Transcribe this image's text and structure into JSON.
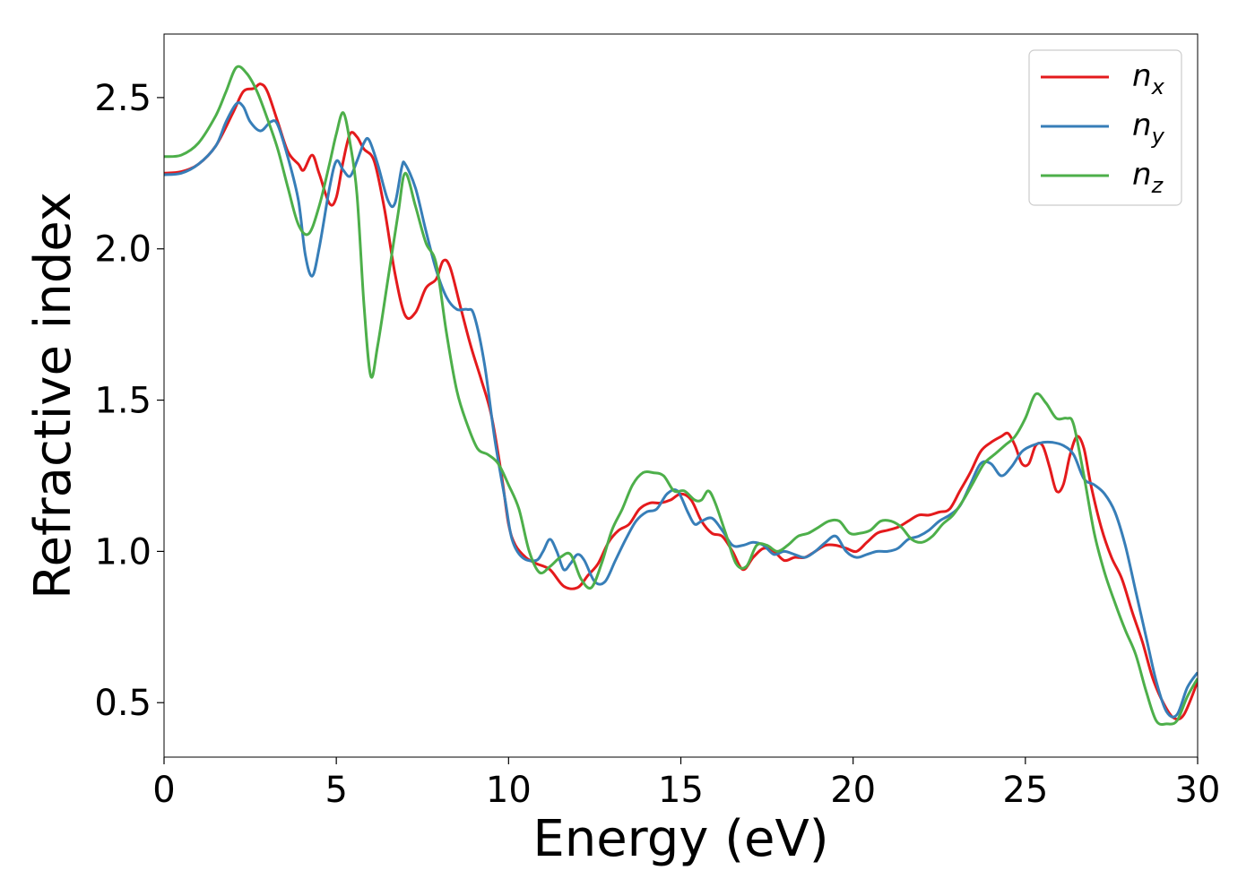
{
  "chart_data": {
    "type": "line",
    "title": "",
    "xlabel": "Energy (eV)",
    "ylabel": "Refractive index",
    "xlim": [
      0,
      30
    ],
    "ylim": [
      0.32,
      2.71
    ],
    "xticks": [
      0,
      5,
      10,
      15,
      20,
      25,
      30
    ],
    "yticks": [
      0.5,
      1.0,
      1.5,
      2.0,
      2.5
    ],
    "xtick_labels": [
      "0",
      "5",
      "10",
      "15",
      "20",
      "25",
      "30"
    ],
    "ytick_labels": [
      "0.5",
      "1.0",
      "1.5",
      "2.0",
      "2.5"
    ],
    "grid": false,
    "legend_position": "top-right",
    "series": [
      {
        "name": "n_x",
        "legend_base": "n",
        "legend_sub": "x",
        "color": "#e41a1c",
        "points": [
          [
            0,
            2.25
          ],
          [
            0.5,
            2.255
          ],
          [
            1.0,
            2.28
          ],
          [
            1.5,
            2.34
          ],
          [
            2.0,
            2.45
          ],
          [
            2.3,
            2.52
          ],
          [
            2.6,
            2.53
          ],
          [
            2.8,
            2.545
          ],
          [
            3.0,
            2.52
          ],
          [
            3.3,
            2.42
          ],
          [
            3.6,
            2.32
          ],
          [
            3.9,
            2.28
          ],
          [
            4.05,
            2.26
          ],
          [
            4.3,
            2.31
          ],
          [
            4.5,
            2.25
          ],
          [
            4.8,
            2.15
          ],
          [
            5.0,
            2.17
          ],
          [
            5.2,
            2.29
          ],
          [
            5.4,
            2.38
          ],
          [
            5.6,
            2.37
          ],
          [
            5.8,
            2.33
          ],
          [
            6.1,
            2.29
          ],
          [
            6.4,
            2.13
          ],
          [
            6.7,
            1.92
          ],
          [
            7.0,
            1.78
          ],
          [
            7.3,
            1.79
          ],
          [
            7.6,
            1.87
          ],
          [
            7.9,
            1.9
          ],
          [
            8.1,
            1.96
          ],
          [
            8.3,
            1.94
          ],
          [
            8.6,
            1.81
          ],
          [
            8.9,
            1.68
          ],
          [
            9.2,
            1.57
          ],
          [
            9.5,
            1.45
          ],
          [
            9.8,
            1.25
          ],
          [
            10.0,
            1.09
          ],
          [
            10.2,
            1.02
          ],
          [
            10.5,
            0.98
          ],
          [
            10.8,
            0.96
          ],
          [
            11.2,
            0.94
          ],
          [
            11.6,
            0.885
          ],
          [
            12.0,
            0.88
          ],
          [
            12.3,
            0.92
          ],
          [
            12.6,
            0.96
          ],
          [
            12.9,
            1.03
          ],
          [
            13.2,
            1.07
          ],
          [
            13.5,
            1.09
          ],
          [
            13.8,
            1.14
          ],
          [
            14.1,
            1.16
          ],
          [
            14.4,
            1.16
          ],
          [
            14.7,
            1.17
          ],
          [
            15.0,
            1.19
          ],
          [
            15.3,
            1.17
          ],
          [
            15.6,
            1.1
          ],
          [
            15.9,
            1.06
          ],
          [
            16.2,
            1.05
          ],
          [
            16.5,
            1.0
          ],
          [
            16.8,
            0.94
          ],
          [
            17.1,
            0.98
          ],
          [
            17.4,
            1.01
          ],
          [
            17.7,
            1.0
          ],
          [
            18.0,
            0.97
          ],
          [
            18.3,
            0.98
          ],
          [
            18.6,
            0.98
          ],
          [
            18.9,
            1.0
          ],
          [
            19.2,
            1.02
          ],
          [
            19.5,
            1.02
          ],
          [
            19.8,
            1.01
          ],
          [
            20.1,
            1.0
          ],
          [
            20.4,
            1.03
          ],
          [
            20.7,
            1.06
          ],
          [
            21.0,
            1.07
          ],
          [
            21.3,
            1.08
          ],
          [
            21.6,
            1.1
          ],
          [
            21.9,
            1.12
          ],
          [
            22.2,
            1.12
          ],
          [
            22.5,
            1.13
          ],
          [
            22.8,
            1.14
          ],
          [
            23.1,
            1.2
          ],
          [
            23.4,
            1.26
          ],
          [
            23.7,
            1.33
          ],
          [
            24.0,
            1.36
          ],
          [
            24.3,
            1.38
          ],
          [
            24.5,
            1.39
          ],
          [
            24.7,
            1.35
          ],
          [
            24.9,
            1.29
          ],
          [
            25.1,
            1.29
          ],
          [
            25.3,
            1.35
          ],
          [
            25.5,
            1.35
          ],
          [
            25.7,
            1.28
          ],
          [
            25.9,
            1.2
          ],
          [
            26.1,
            1.22
          ],
          [
            26.3,
            1.32
          ],
          [
            26.5,
            1.38
          ],
          [
            26.7,
            1.34
          ],
          [
            26.9,
            1.22
          ],
          [
            27.2,
            1.08
          ],
          [
            27.5,
            0.98
          ],
          [
            27.8,
            0.91
          ],
          [
            28.1,
            0.8
          ],
          [
            28.4,
            0.7
          ],
          [
            28.7,
            0.58
          ],
          [
            29.0,
            0.5
          ],
          [
            29.3,
            0.45
          ],
          [
            29.6,
            0.46
          ],
          [
            30.0,
            0.57
          ]
        ]
      },
      {
        "name": "n_y",
        "legend_base": "n",
        "legend_sub": "y",
        "color": "#377eb8",
        "points": [
          [
            0,
            2.245
          ],
          [
            0.5,
            2.25
          ],
          [
            1.0,
            2.28
          ],
          [
            1.5,
            2.34
          ],
          [
            1.8,
            2.42
          ],
          [
            2.1,
            2.48
          ],
          [
            2.3,
            2.47
          ],
          [
            2.5,
            2.42
          ],
          [
            2.8,
            2.39
          ],
          [
            3.1,
            2.42
          ],
          [
            3.3,
            2.41
          ],
          [
            3.6,
            2.3
          ],
          [
            3.9,
            2.16
          ],
          [
            4.1,
            1.98
          ],
          [
            4.3,
            1.91
          ],
          [
            4.5,
            2.0
          ],
          [
            4.8,
            2.2
          ],
          [
            5.0,
            2.29
          ],
          [
            5.2,
            2.26
          ],
          [
            5.4,
            2.24
          ],
          [
            5.6,
            2.29
          ],
          [
            5.8,
            2.35
          ],
          [
            5.95,
            2.36
          ],
          [
            6.2,
            2.28
          ],
          [
            6.5,
            2.16
          ],
          [
            6.7,
            2.15
          ],
          [
            6.9,
            2.27
          ],
          [
            7.0,
            2.28
          ],
          [
            7.3,
            2.2
          ],
          [
            7.6,
            2.06
          ],
          [
            7.9,
            1.93
          ],
          [
            8.2,
            1.84
          ],
          [
            8.5,
            1.8
          ],
          [
            8.8,
            1.8
          ],
          [
            9.0,
            1.78
          ],
          [
            9.3,
            1.62
          ],
          [
            9.6,
            1.37
          ],
          [
            9.9,
            1.17
          ],
          [
            10.1,
            1.04
          ],
          [
            10.4,
            0.98
          ],
          [
            10.8,
            0.97
          ],
          [
            11.0,
            1.0
          ],
          [
            11.2,
            1.04
          ],
          [
            11.4,
            1.0
          ],
          [
            11.6,
            0.94
          ],
          [
            11.8,
            0.96
          ],
          [
            12.0,
            0.99
          ],
          [
            12.2,
            0.97
          ],
          [
            12.5,
            0.9
          ],
          [
            12.8,
            0.9
          ],
          [
            13.1,
            0.97
          ],
          [
            13.4,
            1.04
          ],
          [
            13.7,
            1.1
          ],
          [
            14.0,
            1.13
          ],
          [
            14.3,
            1.14
          ],
          [
            14.6,
            1.19
          ],
          [
            14.9,
            1.2
          ],
          [
            15.2,
            1.13
          ],
          [
            15.4,
            1.09
          ],
          [
            15.6,
            1.1
          ],
          [
            15.9,
            1.11
          ],
          [
            16.2,
            1.07
          ],
          [
            16.5,
            1.02
          ],
          [
            16.8,
            1.02
          ],
          [
            17.1,
            1.03
          ],
          [
            17.4,
            1.02
          ],
          [
            17.7,
            0.99
          ],
          [
            18.0,
            1.0
          ],
          [
            18.3,
            0.99
          ],
          [
            18.6,
            0.98
          ],
          [
            18.9,
            1.0
          ],
          [
            19.2,
            1.03
          ],
          [
            19.5,
            1.05
          ],
          [
            19.8,
            1.0
          ],
          [
            20.1,
            0.98
          ],
          [
            20.4,
            0.99
          ],
          [
            20.7,
            1.0
          ],
          [
            21.0,
            1.0
          ],
          [
            21.3,
            1.01
          ],
          [
            21.6,
            1.04
          ],
          [
            21.9,
            1.05
          ],
          [
            22.2,
            1.07
          ],
          [
            22.5,
            1.1
          ],
          [
            22.8,
            1.12
          ],
          [
            23.1,
            1.15
          ],
          [
            23.4,
            1.22
          ],
          [
            23.7,
            1.29
          ],
          [
            24.0,
            1.29
          ],
          [
            24.3,
            1.25
          ],
          [
            24.6,
            1.28
          ],
          [
            24.9,
            1.33
          ],
          [
            25.2,
            1.35
          ],
          [
            25.5,
            1.36
          ],
          [
            25.8,
            1.36
          ],
          [
            26.1,
            1.35
          ],
          [
            26.4,
            1.32
          ],
          [
            26.7,
            1.24
          ],
          [
            27.0,
            1.22
          ],
          [
            27.3,
            1.19
          ],
          [
            27.6,
            1.13
          ],
          [
            27.9,
            1.02
          ],
          [
            28.2,
            0.87
          ],
          [
            28.5,
            0.72
          ],
          [
            28.8,
            0.57
          ],
          [
            29.1,
            0.47
          ],
          [
            29.4,
            0.46
          ],
          [
            29.7,
            0.55
          ],
          [
            30.0,
            0.6
          ]
        ]
      },
      {
        "name": "n_z",
        "legend_base": "n",
        "legend_sub": "z",
        "color": "#4daf4a",
        "points": [
          [
            0,
            2.305
          ],
          [
            0.5,
            2.31
          ],
          [
            1.0,
            2.35
          ],
          [
            1.5,
            2.44
          ],
          [
            1.8,
            2.52
          ],
          [
            2.1,
            2.6
          ],
          [
            2.4,
            2.58
          ],
          [
            2.7,
            2.52
          ],
          [
            3.0,
            2.43
          ],
          [
            3.3,
            2.33
          ],
          [
            3.6,
            2.2
          ],
          [
            3.9,
            2.08
          ],
          [
            4.2,
            2.05
          ],
          [
            4.5,
            2.14
          ],
          [
            4.8,
            2.28
          ],
          [
            5.0,
            2.38
          ],
          [
            5.2,
            2.45
          ],
          [
            5.4,
            2.35
          ],
          [
            5.6,
            2.18
          ],
          [
            5.8,
            1.82
          ],
          [
            6.0,
            1.58
          ],
          [
            6.2,
            1.68
          ],
          [
            6.5,
            1.9
          ],
          [
            6.8,
            2.12
          ],
          [
            7.0,
            2.25
          ],
          [
            7.3,
            2.14
          ],
          [
            7.6,
            2.02
          ],
          [
            7.9,
            1.95
          ],
          [
            8.2,
            1.72
          ],
          [
            8.5,
            1.53
          ],
          [
            8.8,
            1.42
          ],
          [
            9.1,
            1.34
          ],
          [
            9.4,
            1.32
          ],
          [
            9.7,
            1.29
          ],
          [
            10.0,
            1.22
          ],
          [
            10.3,
            1.14
          ],
          [
            10.6,
            1.0
          ],
          [
            10.9,
            0.93
          ],
          [
            11.2,
            0.95
          ],
          [
            11.5,
            0.98
          ],
          [
            11.8,
            0.99
          ],
          [
            12.1,
            0.91
          ],
          [
            12.4,
            0.88
          ],
          [
            12.7,
            0.96
          ],
          [
            13.0,
            1.07
          ],
          [
            13.3,
            1.14
          ],
          [
            13.6,
            1.22
          ],
          [
            13.9,
            1.26
          ],
          [
            14.2,
            1.26
          ],
          [
            14.5,
            1.25
          ],
          [
            14.8,
            1.2
          ],
          [
            15.1,
            1.2
          ],
          [
            15.4,
            1.17
          ],
          [
            15.6,
            1.17
          ],
          [
            15.8,
            1.2
          ],
          [
            16.0,
            1.16
          ],
          [
            16.3,
            1.06
          ],
          [
            16.6,
            0.96
          ],
          [
            16.9,
            0.95
          ],
          [
            17.2,
            1.02
          ],
          [
            17.5,
            1.02
          ],
          [
            17.8,
            1.0
          ],
          [
            18.1,
            1.02
          ],
          [
            18.4,
            1.05
          ],
          [
            18.7,
            1.06
          ],
          [
            19.0,
            1.08
          ],
          [
            19.3,
            1.1
          ],
          [
            19.6,
            1.1
          ],
          [
            19.9,
            1.06
          ],
          [
            20.2,
            1.06
          ],
          [
            20.5,
            1.07
          ],
          [
            20.8,
            1.1
          ],
          [
            21.1,
            1.1
          ],
          [
            21.4,
            1.08
          ],
          [
            21.7,
            1.04
          ],
          [
            22.0,
            1.03
          ],
          [
            22.3,
            1.05
          ],
          [
            22.6,
            1.09
          ],
          [
            22.9,
            1.12
          ],
          [
            23.2,
            1.17
          ],
          [
            23.5,
            1.23
          ],
          [
            23.8,
            1.29
          ],
          [
            24.1,
            1.32
          ],
          [
            24.4,
            1.35
          ],
          [
            24.7,
            1.38
          ],
          [
            25.0,
            1.44
          ],
          [
            25.3,
            1.52
          ],
          [
            25.6,
            1.49
          ],
          [
            25.9,
            1.44
          ],
          [
            26.2,
            1.44
          ],
          [
            26.4,
            1.42
          ],
          [
            26.7,
            1.25
          ],
          [
            27.0,
            1.06
          ],
          [
            27.3,
            0.93
          ],
          [
            27.6,
            0.83
          ],
          [
            27.9,
            0.74
          ],
          [
            28.2,
            0.66
          ],
          [
            28.5,
            0.54
          ],
          [
            28.8,
            0.44
          ],
          [
            29.1,
            0.43
          ],
          [
            29.4,
            0.44
          ],
          [
            29.7,
            0.52
          ],
          [
            30.0,
            0.58
          ]
        ]
      }
    ]
  }
}
